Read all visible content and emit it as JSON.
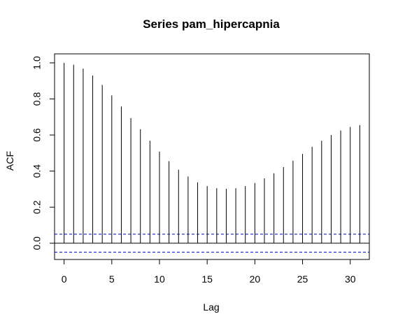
{
  "chart_data": {
    "type": "bar",
    "title": "Series  pam_hipercapnia",
    "xlabel": "Lag",
    "ylabel": "ACF",
    "xlim": [
      -1,
      32
    ],
    "ylim": [
      -0.09,
      1.05
    ],
    "x_ticks": [
      0,
      5,
      10,
      15,
      20,
      25,
      30
    ],
    "x_tick_labels": [
      "0",
      "5",
      "10",
      "15",
      "20",
      "25",
      "30"
    ],
    "y_ticks": [
      0.0,
      0.2,
      0.4,
      0.6,
      0.8,
      1.0
    ],
    "y_tick_labels": [
      "0.0",
      "0.2",
      "0.4",
      "0.6",
      "0.8",
      "1.0"
    ],
    "grid": false,
    "lags": [
      0,
      1,
      2,
      3,
      4,
      5,
      6,
      7,
      8,
      9,
      10,
      11,
      12,
      13,
      14,
      15,
      16,
      17,
      18,
      19,
      20,
      21,
      22,
      23,
      24,
      25,
      26,
      27,
      28,
      29,
      30,
      31
    ],
    "acf": [
      1.0,
      0.99,
      0.968,
      0.93,
      0.878,
      0.82,
      0.758,
      0.694,
      0.632,
      0.568,
      0.508,
      0.455,
      0.408,
      0.37,
      0.338,
      0.317,
      0.305,
      0.302,
      0.305,
      0.317,
      0.334,
      0.36,
      0.388,
      0.422,
      0.458,
      0.495,
      0.535,
      0.568,
      0.6,
      0.625,
      0.645,
      0.655
    ],
    "confidence_band": [
      0.05,
      -0.05
    ],
    "band_color": "#0000CD",
    "bar_color": "#000000"
  }
}
